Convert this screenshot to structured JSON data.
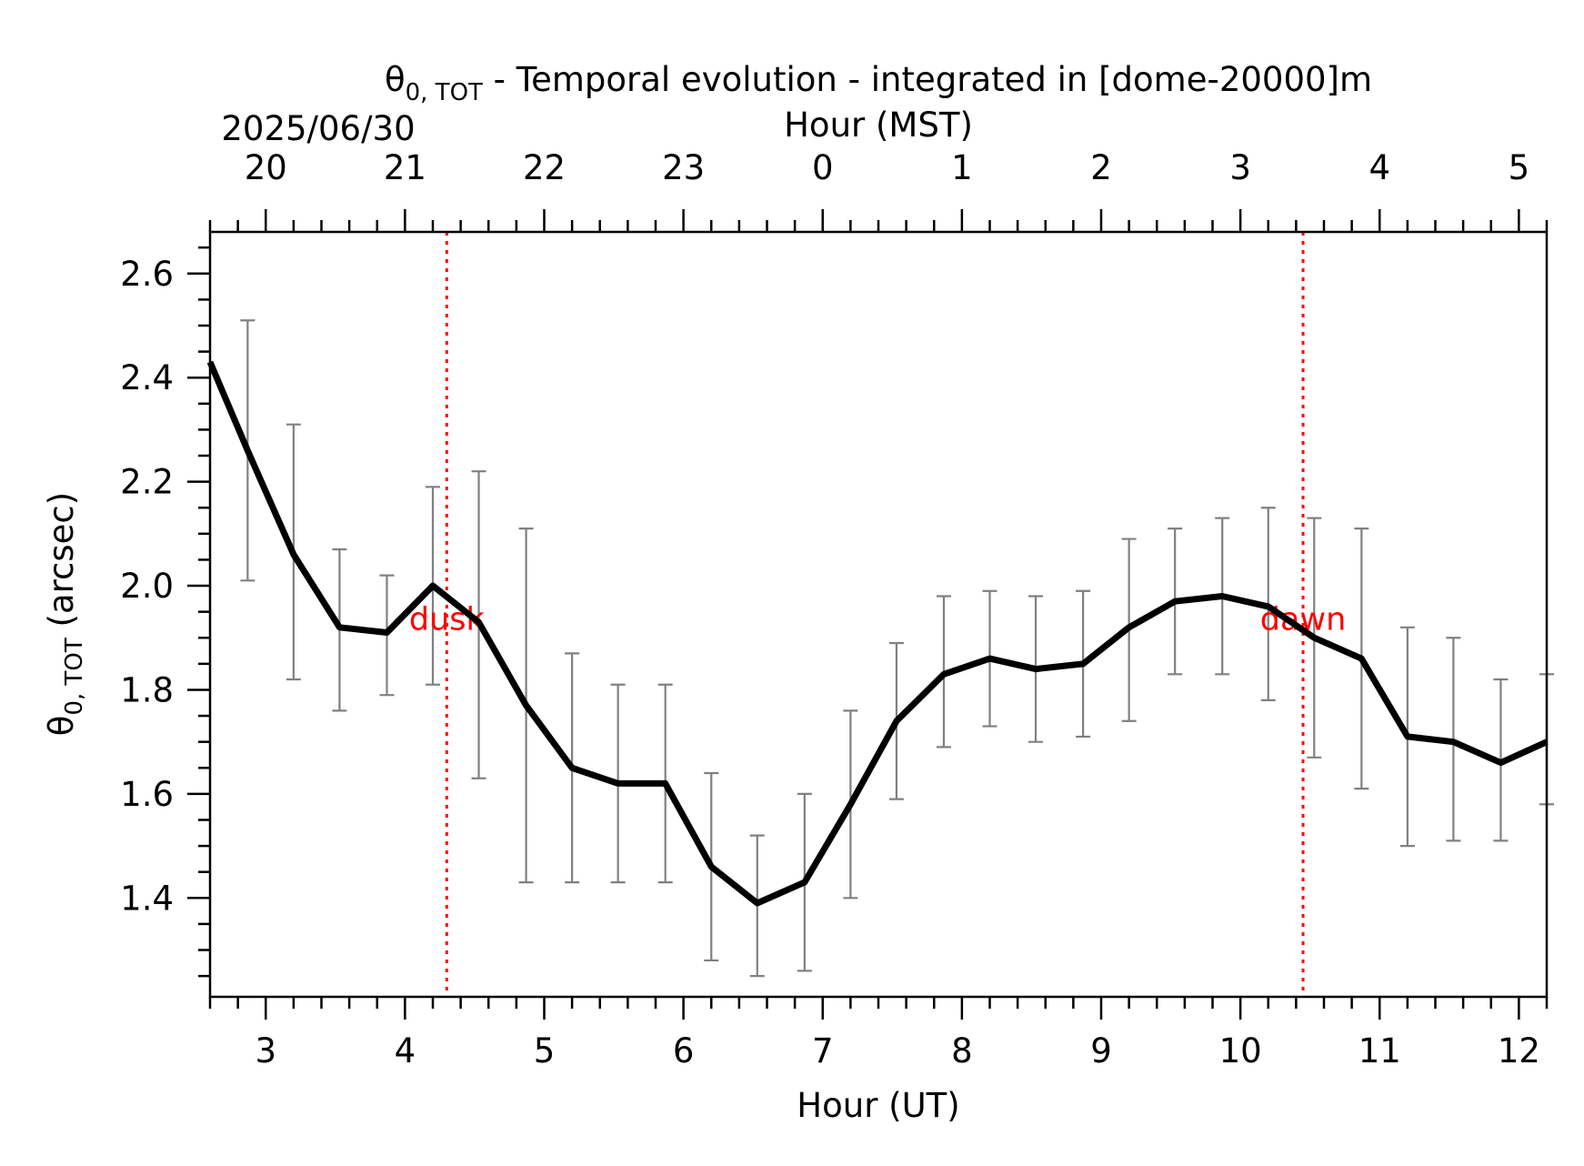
{
  "chart_data": {
    "type": "line",
    "title": "θ0, TOT - Temporal evolution - integrated in [dome-20000]m",
    "title_symbol": "θ",
    "title_subscript": "0, TOT",
    "title_rest": " - Temporal evolution - integrated in [dome-20000]m",
    "date_label": "2025/06/30",
    "xlabel": "Hour (UT)",
    "x2label": "Hour (MST)",
    "ylabel": "θ0, TOT (arcsec)",
    "ylabel_symbol": "θ",
    "ylabel_subscript": "0, TOT",
    "ylabel_rest": " (arcsec)",
    "xlim": [
      2.6,
      12.2
    ],
    "ylim": [
      1.21,
      2.68
    ],
    "x_ticks": [
      3,
      4,
      5,
      6,
      7,
      8,
      9,
      10,
      11,
      12
    ],
    "x2_ticks": [
      {
        "x": 3,
        "label": "20"
      },
      {
        "x": 4,
        "label": "21"
      },
      {
        "x": 5,
        "label": "22"
      },
      {
        "x": 6,
        "label": "23"
      },
      {
        "x": 7,
        "label": "0"
      },
      {
        "x": 8,
        "label": "1"
      },
      {
        "x": 9,
        "label": "2"
      },
      {
        "x": 10,
        "label": "3"
      },
      {
        "x": 11,
        "label": "4"
      },
      {
        "x": 12,
        "label": "5"
      }
    ],
    "y_ticks": [
      1.4,
      1.6,
      1.8,
      2.0,
      2.2,
      2.4,
      2.6
    ],
    "y_tick_labels": [
      "1.4",
      "1.6",
      "1.8",
      "2.0",
      "2.2",
      "2.4",
      "2.6"
    ],
    "grid": false,
    "series": [
      {
        "x": [
          2.6,
          2.87,
          3.2,
          3.53,
          3.87,
          4.2,
          4.53,
          4.87,
          5.2,
          5.53,
          5.87,
          6.2,
          6.53,
          6.87,
          7.2,
          7.53,
          7.87,
          8.2,
          8.53,
          8.87,
          9.2,
          9.53,
          9.87,
          10.2,
          10.53,
          10.87,
          11.2,
          11.53,
          11.87,
          12.2
        ],
        "y": [
          2.43,
          2.26,
          2.06,
          1.92,
          1.91,
          2.0,
          1.93,
          1.77,
          1.65,
          1.62,
          1.62,
          1.46,
          1.39,
          1.43,
          1.58,
          1.74,
          1.83,
          1.86,
          1.84,
          1.85,
          1.92,
          1.97,
          1.98,
          1.96,
          1.9,
          1.86,
          1.71,
          1.7,
          1.66,
          1.7
        ],
        "err_low": [
          null,
          2.01,
          1.82,
          1.76,
          1.79,
          1.81,
          1.63,
          1.43,
          1.43,
          1.43,
          1.43,
          1.28,
          1.25,
          1.26,
          1.4,
          1.59,
          1.69,
          1.73,
          1.7,
          1.71,
          1.74,
          1.83,
          1.83,
          1.78,
          1.67,
          1.61,
          1.5,
          1.51,
          1.51,
          1.58
        ],
        "err_high": [
          null,
          2.51,
          2.31,
          2.07,
          2.02,
          2.19,
          2.22,
          2.11,
          1.87,
          1.81,
          1.81,
          1.64,
          1.52,
          1.6,
          1.76,
          1.89,
          1.98,
          1.99,
          1.98,
          1.99,
          2.09,
          2.11,
          2.13,
          2.15,
          2.13,
          2.11,
          1.92,
          1.9,
          1.82,
          1.83
        ]
      }
    ],
    "annotations": [
      {
        "x": 4.3,
        "label": "dusk"
      },
      {
        "x": 10.45,
        "label": "dawn"
      }
    ],
    "colors": {
      "line": "#000000",
      "errorbar": "#808080",
      "annotation": "#ff0000"
    }
  }
}
